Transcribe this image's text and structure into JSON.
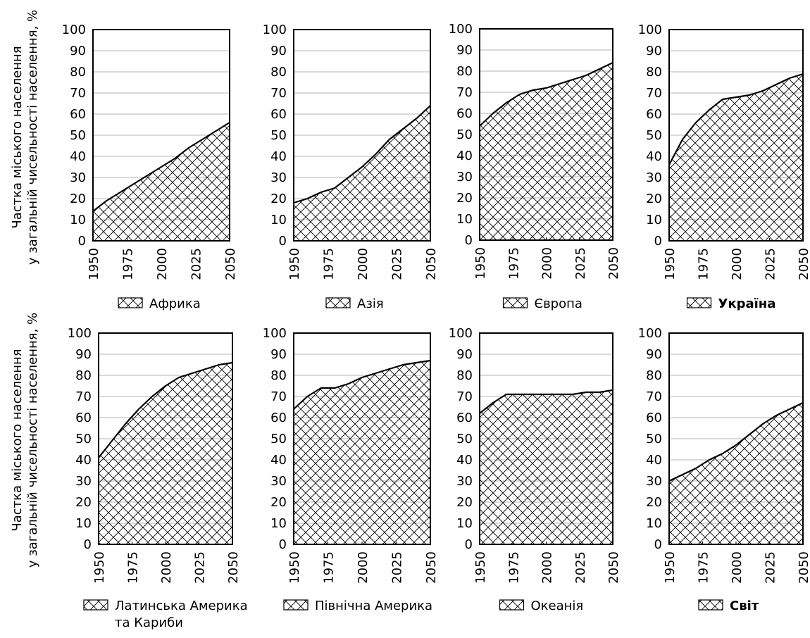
{
  "y_axis_label": {
    "line1": "Частка міського населення",
    "line2": "у загальній чисельності населення, %"
  },
  "chart_data": [
    {
      "type": "area",
      "legend": "Африка",
      "bold": false,
      "x": [
        1950,
        1960,
        1970,
        1980,
        1990,
        2000,
        2010,
        2020,
        2030,
        2040,
        2050
      ],
      "values": [
        14,
        19,
        23,
        27,
        31,
        35,
        39,
        44,
        48,
        52,
        56
      ],
      "ylim": [
        0,
        100
      ],
      "yticks": [
        0,
        10,
        20,
        30,
        40,
        50,
        60,
        70,
        80,
        90,
        100
      ],
      "xticks": [
        1950,
        1975,
        2000,
        2025,
        2050
      ],
      "grid": true
    },
    {
      "type": "area",
      "legend": "Азія",
      "bold": false,
      "x": [
        1950,
        1960,
        1970,
        1980,
        1990,
        2000,
        2010,
        2020,
        2030,
        2040,
        2050
      ],
      "values": [
        18,
        20,
        23,
        25,
        30,
        35,
        41,
        48,
        53,
        58,
        64
      ],
      "ylim": [
        0,
        100
      ],
      "yticks": [
        0,
        10,
        20,
        30,
        40,
        50,
        60,
        70,
        80,
        90,
        100
      ],
      "xticks": [
        1950,
        1975,
        2000,
        2025,
        2050
      ],
      "grid": true
    },
    {
      "type": "area",
      "legend": "Європа",
      "bold": false,
      "x": [
        1950,
        1960,
        1970,
        1980,
        1990,
        2000,
        2010,
        2020,
        2030,
        2040,
        2050
      ],
      "values": [
        54,
        60,
        65,
        69,
        71,
        72,
        74,
        76,
        78,
        81,
        84
      ],
      "ylim": [
        0,
        100
      ],
      "yticks": [
        0,
        10,
        20,
        30,
        40,
        50,
        60,
        70,
        80,
        90,
        100
      ],
      "xticks": [
        1950,
        1975,
        2000,
        2025,
        2050
      ],
      "grid": true
    },
    {
      "type": "area",
      "legend": "Україна",
      "bold": true,
      "x": [
        1950,
        1960,
        1970,
        1980,
        1990,
        2000,
        2010,
        2020,
        2030,
        2040,
        2050
      ],
      "values": [
        36,
        48,
        56,
        62,
        67,
        68,
        69,
        71,
        74,
        77,
        79
      ],
      "ylim": [
        0,
        100
      ],
      "yticks": [
        0,
        10,
        20,
        30,
        40,
        50,
        60,
        70,
        80,
        90,
        100
      ],
      "xticks": [
        1950,
        1975,
        2000,
        2025,
        2050
      ],
      "grid": true
    },
    {
      "type": "area",
      "legend": "Латинська Америка",
      "legend2": "та Кариби",
      "bold": false,
      "x": [
        1950,
        1960,
        1970,
        1980,
        1990,
        2000,
        2010,
        2020,
        2030,
        2040,
        2050
      ],
      "values": [
        41,
        49,
        57,
        64,
        70,
        75,
        79,
        81,
        83,
        85,
        86
      ],
      "ylim": [
        0,
        100
      ],
      "yticks": [
        0,
        10,
        20,
        30,
        40,
        50,
        60,
        70,
        80,
        90,
        100
      ],
      "xticks": [
        1950,
        1975,
        2000,
        2025,
        2050
      ],
      "grid": true
    },
    {
      "type": "area",
      "legend": "Північна Америка",
      "bold": false,
      "x": [
        1950,
        1960,
        1970,
        1980,
        1990,
        2000,
        2010,
        2020,
        2030,
        2040,
        2050
      ],
      "values": [
        64,
        70,
        74,
        74,
        76,
        79,
        81,
        83,
        85,
        86,
        87
      ],
      "ylim": [
        0,
        100
      ],
      "yticks": [
        0,
        10,
        20,
        30,
        40,
        50,
        60,
        70,
        80,
        90,
        100
      ],
      "xticks": [
        1950,
        1975,
        2000,
        2025,
        2050
      ],
      "grid": true
    },
    {
      "type": "area",
      "legend": "Океанія",
      "bold": false,
      "x": [
        1950,
        1960,
        1970,
        1980,
        1990,
        2000,
        2010,
        2020,
        2030,
        2040,
        2050
      ],
      "values": [
        62,
        67,
        71,
        71,
        71,
        71,
        71,
        71,
        72,
        72,
        73
      ],
      "ylim": [
        0,
        100
      ],
      "yticks": [
        0,
        10,
        20,
        30,
        40,
        50,
        60,
        70,
        80,
        90,
        100
      ],
      "xticks": [
        1950,
        1975,
        2000,
        2025,
        2050
      ],
      "grid": true
    },
    {
      "type": "area",
      "legend": "Світ",
      "bold": true,
      "x": [
        1950,
        1960,
        1970,
        1980,
        1990,
        2000,
        2010,
        2020,
        2030,
        2040,
        2050
      ],
      "values": [
        30,
        33,
        36,
        40,
        43,
        47,
        52,
        57,
        61,
        64,
        67
      ],
      "ylim": [
        0,
        100
      ],
      "yticks": [
        0,
        10,
        20,
        30,
        40,
        50,
        60,
        70,
        80,
        90,
        100
      ],
      "xticks": [
        1950,
        1975,
        2000,
        2025,
        2050
      ],
      "grid": true
    }
  ]
}
